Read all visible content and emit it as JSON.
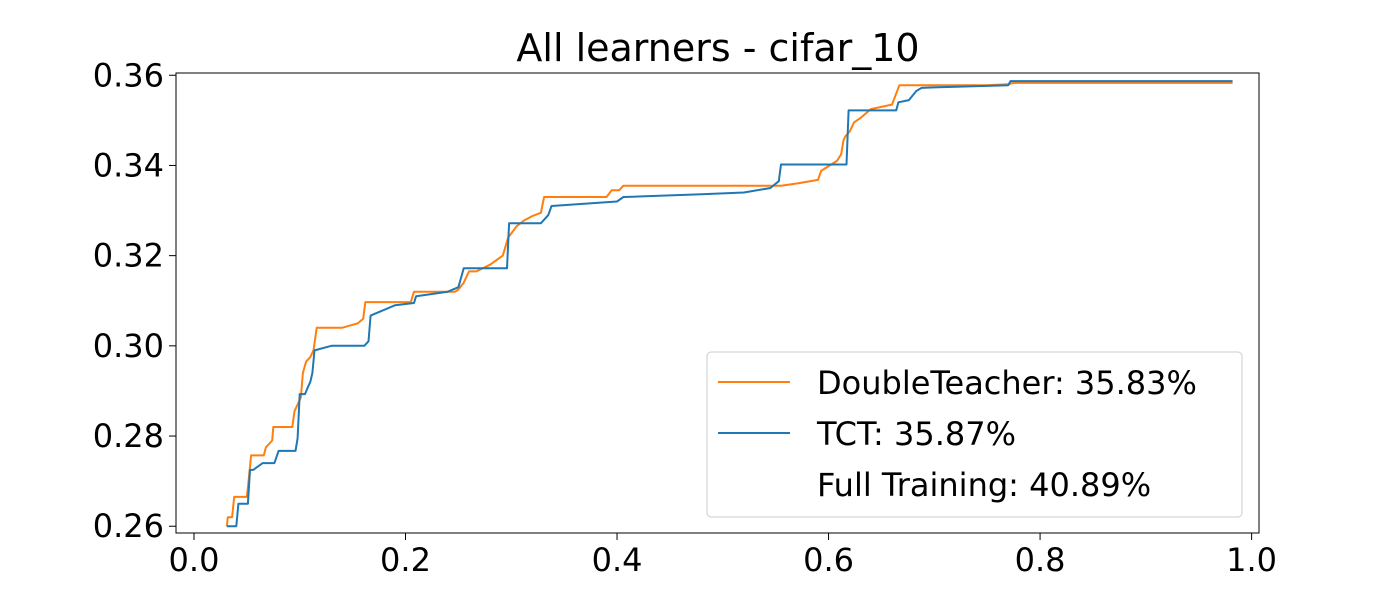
{
  "chart_data": {
    "type": "line",
    "title": "All learners - cifar_10",
    "xlabel": "",
    "ylabel": "",
    "xlim": [
      -0.017,
      1.007
    ],
    "ylim": [
      0.2585,
      0.3605
    ],
    "xticks": [
      0.0,
      0.2,
      0.4,
      0.6,
      0.8,
      1.0
    ],
    "xtick_labels": [
      "0.0",
      "0.2",
      "0.4",
      "0.6",
      "0.8",
      "1.0"
    ],
    "yticks": [
      0.26,
      0.28,
      0.3,
      0.32,
      0.34,
      0.36
    ],
    "ytick_labels": [
      "0.26",
      "0.28",
      "0.30",
      "0.32",
      "0.34",
      "0.36"
    ],
    "grid": false,
    "legend_position": "lower-right",
    "legend": [
      {
        "label": "DoubleTeacher: 35.83%",
        "color": "#ff7f0e"
      },
      {
        "label": "TCT: 35.87%",
        "color": "#1f77b4"
      },
      {
        "label": "Full Training: 40.89%",
        "color": "none"
      }
    ],
    "series": [
      {
        "name": "DoubleTeacher",
        "color": "#ff7f0e",
        "points": [
          [
            0.031,
            0.26
          ],
          [
            0.032,
            0.262
          ],
          [
            0.036,
            0.262
          ],
          [
            0.038,
            0.2665
          ],
          [
            0.05,
            0.2665
          ],
          [
            0.052,
            0.271
          ],
          [
            0.054,
            0.2757
          ],
          [
            0.066,
            0.2757
          ],
          [
            0.068,
            0.2775
          ],
          [
            0.074,
            0.279
          ],
          [
            0.075,
            0.282
          ],
          [
            0.093,
            0.282
          ],
          [
            0.095,
            0.2855
          ],
          [
            0.101,
            0.2885
          ],
          [
            0.103,
            0.294
          ],
          [
            0.106,
            0.2965
          ],
          [
            0.11,
            0.2975
          ],
          [
            0.113,
            0.299
          ],
          [
            0.116,
            0.304
          ],
          [
            0.14,
            0.304
          ],
          [
            0.155,
            0.305
          ],
          [
            0.16,
            0.306
          ],
          [
            0.162,
            0.3097
          ],
          [
            0.205,
            0.3097
          ],
          [
            0.208,
            0.312
          ],
          [
            0.247,
            0.312
          ],
          [
            0.25,
            0.3125
          ],
          [
            0.255,
            0.314
          ],
          [
            0.26,
            0.3165
          ],
          [
            0.267,
            0.3165
          ],
          [
            0.28,
            0.318
          ],
          [
            0.292,
            0.32
          ],
          [
            0.297,
            0.324
          ],
          [
            0.305,
            0.3265
          ],
          [
            0.312,
            0.3278
          ],
          [
            0.32,
            0.3288
          ],
          [
            0.328,
            0.3295
          ],
          [
            0.331,
            0.333
          ],
          [
            0.39,
            0.333
          ],
          [
            0.395,
            0.3345
          ],
          [
            0.402,
            0.3345
          ],
          [
            0.406,
            0.3355
          ],
          [
            0.555,
            0.3355
          ],
          [
            0.57,
            0.336
          ],
          [
            0.59,
            0.3368
          ],
          [
            0.593,
            0.3388
          ],
          [
            0.608,
            0.341
          ],
          [
            0.612,
            0.3425
          ],
          [
            0.614,
            0.3455
          ],
          [
            0.616,
            0.3465
          ],
          [
            0.62,
            0.3475
          ],
          [
            0.624,
            0.3495
          ],
          [
            0.63,
            0.3505
          ],
          [
            0.64,
            0.3525
          ],
          [
            0.66,
            0.3535
          ],
          [
            0.667,
            0.3578
          ],
          [
            0.75,
            0.3578
          ],
          [
            0.77,
            0.358
          ],
          [
            0.775,
            0.3583
          ],
          [
            0.982,
            0.3583
          ]
        ]
      },
      {
        "name": "TCT",
        "color": "#1f77b4",
        "points": [
          [
            0.031,
            0.26
          ],
          [
            0.04,
            0.26
          ],
          [
            0.042,
            0.265
          ],
          [
            0.051,
            0.265
          ],
          [
            0.053,
            0.2725
          ],
          [
            0.056,
            0.2725
          ],
          [
            0.065,
            0.274
          ],
          [
            0.076,
            0.274
          ],
          [
            0.08,
            0.2767
          ],
          [
            0.096,
            0.2767
          ],
          [
            0.098,
            0.2795
          ],
          [
            0.1,
            0.2893
          ],
          [
            0.105,
            0.2893
          ],
          [
            0.108,
            0.291
          ],
          [
            0.11,
            0.292
          ],
          [
            0.112,
            0.294
          ],
          [
            0.114,
            0.299
          ],
          [
            0.13,
            0.3
          ],
          [
            0.161,
            0.3
          ],
          [
            0.165,
            0.301
          ],
          [
            0.167,
            0.3067
          ],
          [
            0.19,
            0.309
          ],
          [
            0.208,
            0.3095
          ],
          [
            0.21,
            0.311
          ],
          [
            0.24,
            0.312
          ],
          [
            0.25,
            0.313
          ],
          [
            0.253,
            0.3155
          ],
          [
            0.255,
            0.3172
          ],
          [
            0.296,
            0.3172
          ],
          [
            0.298,
            0.3272
          ],
          [
            0.328,
            0.3272
          ],
          [
            0.335,
            0.329
          ],
          [
            0.338,
            0.331
          ],
          [
            0.4,
            0.332
          ],
          [
            0.406,
            0.333
          ],
          [
            0.48,
            0.3336
          ],
          [
            0.52,
            0.334
          ],
          [
            0.545,
            0.335
          ],
          [
            0.553,
            0.3365
          ],
          [
            0.555,
            0.3402
          ],
          [
            0.617,
            0.3402
          ],
          [
            0.619,
            0.3522
          ],
          [
            0.664,
            0.3522
          ],
          [
            0.666,
            0.354
          ],
          [
            0.676,
            0.3545
          ],
          [
            0.683,
            0.3565
          ],
          [
            0.688,
            0.3572
          ],
          [
            0.7,
            0.3573
          ],
          [
            0.77,
            0.3578
          ],
          [
            0.772,
            0.3587
          ],
          [
            0.78,
            0.3587
          ],
          [
            0.982,
            0.3587
          ]
        ]
      }
    ]
  }
}
